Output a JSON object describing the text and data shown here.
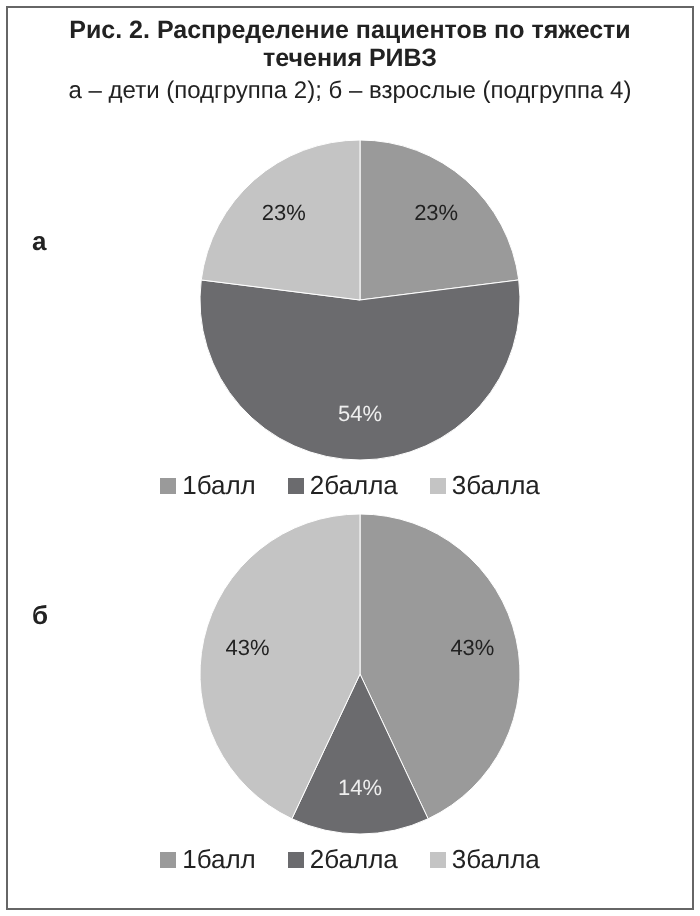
{
  "chart_data": [
    {
      "type": "pie",
      "title": "Рис. 2. Распределение пациентов по тяжести течения РИВЗ",
      "subtitle": "а – дети (подгруппа 2); б – взрослые (подгруппа 4)",
      "annotations": [
        "а"
      ],
      "categories": [
        "1балл",
        "2балла",
        "3балла"
      ],
      "values": [
        23,
        54,
        23
      ],
      "value_labels": [
        "23%",
        "54%",
        "23%"
      ],
      "colors": [
        "#9a9a9a",
        "#6b6b6e",
        "#c4c4c4"
      ],
      "legend": "bottom"
    },
    {
      "type": "pie",
      "annotations": [
        "б"
      ],
      "categories": [
        "1балл",
        "2балла",
        "3балла"
      ],
      "values": [
        43,
        14,
        43
      ],
      "value_labels": [
        "43%",
        "14%",
        "43%"
      ],
      "colors": [
        "#9a9a9a",
        "#6b6b6e",
        "#c4c4c4"
      ],
      "legend": "bottom"
    }
  ]
}
